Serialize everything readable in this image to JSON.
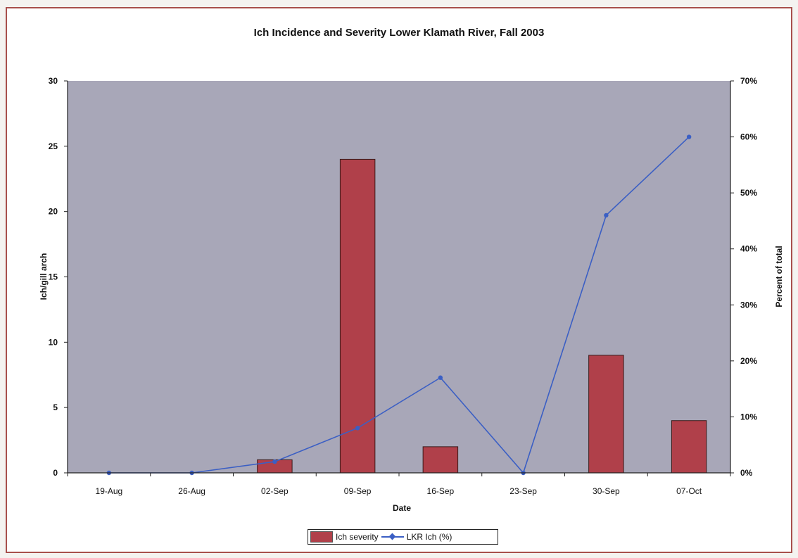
{
  "chart_data": {
    "type": "bar",
    "title": "Ich Incidence and Severity Lower Klamath River, Fall 2003",
    "xlabel": "Date",
    "ylabel": "Ich/gill arch",
    "y2label": "Percent of total",
    "categories": [
      "19-Aug",
      "26-Aug",
      "02-Sep",
      "09-Sep",
      "16-Sep",
      "23-Sep",
      "30-Sep",
      "07-Oct"
    ],
    "ylim": [
      0,
      30
    ],
    "y2lim": [
      0,
      70
    ],
    "yticks": [
      "0",
      "5",
      "10",
      "15",
      "20",
      "25",
      "30"
    ],
    "y2ticks": [
      "0%",
      "10%",
      "20%",
      "30%",
      "40%",
      "50%",
      "60%",
      "70%"
    ],
    "grid": false,
    "legend_position": "bottom",
    "series": [
      {
        "name": "Ich severity",
        "type": "bar",
        "axis": "left",
        "color": "#b0404a",
        "values": [
          0,
          0,
          1,
          24,
          2,
          0,
          9,
          4
        ]
      },
      {
        "name": "LKR Ich (%)",
        "type": "line",
        "axis": "right",
        "color": "#3b5fc4",
        "values": [
          0,
          0,
          2,
          8,
          17,
          0,
          46,
          60
        ]
      }
    ],
    "plot_background": "#a8a7b8"
  }
}
